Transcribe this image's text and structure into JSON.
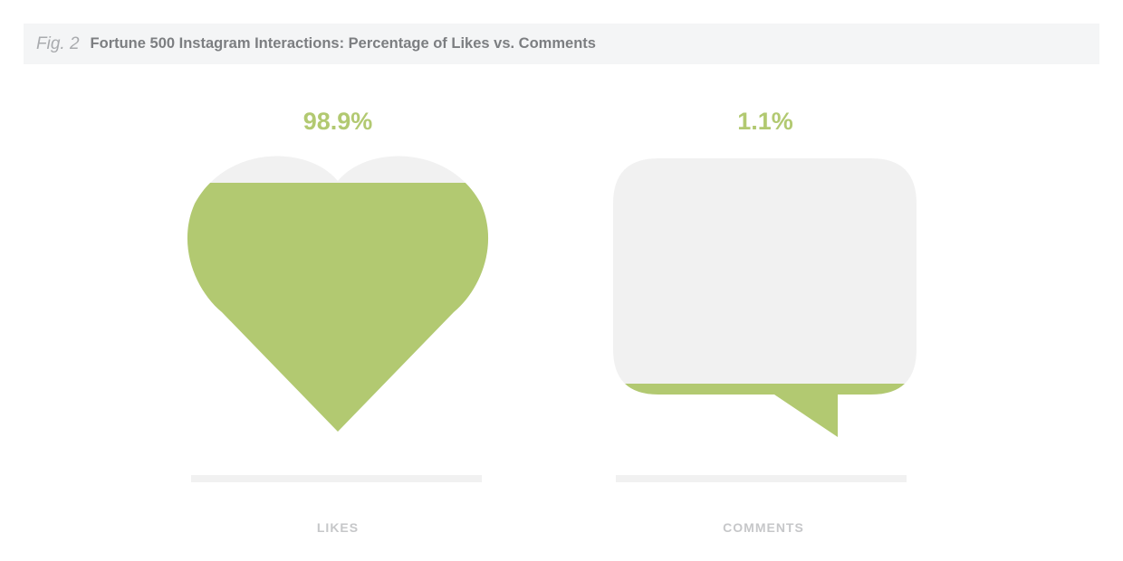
{
  "header": {
    "fig": "Fig. 2",
    "title": "Fortune 500 Instagram Interactions: Percentage of Likes vs. Comments"
  },
  "chart_data": {
    "type": "pictogram",
    "title": "Fortune 500 Instagram Interactions: Percentage of Likes vs. Comments",
    "categories": [
      "LIKES",
      "COMMENTS"
    ],
    "values": [
      98.9,
      1.1
    ],
    "value_labels": [
      "98.9%",
      "1.1%"
    ],
    "icons": [
      "heart-icon",
      "speech-bubble-icon"
    ],
    "colors": {
      "fill": "#b2c971",
      "empty": "#f1f1f1",
      "baseline": "#f1f1f1"
    }
  }
}
